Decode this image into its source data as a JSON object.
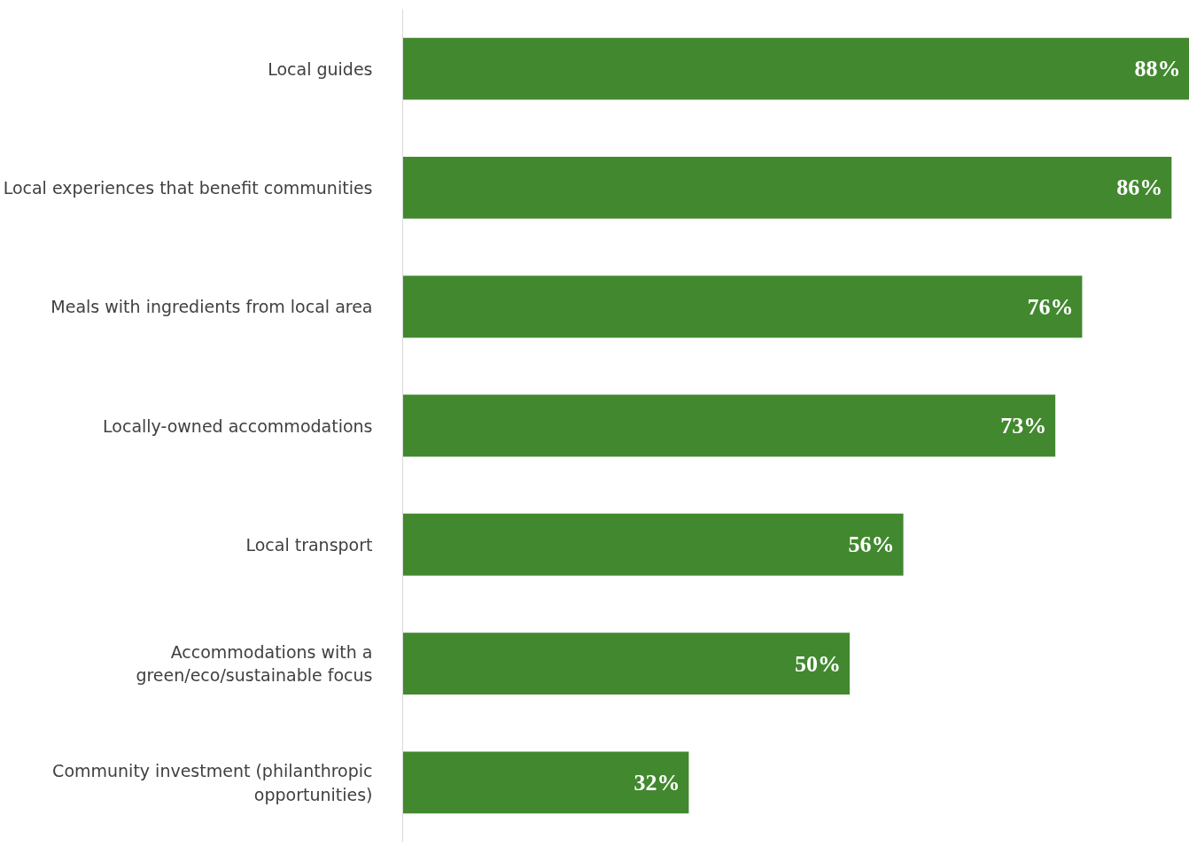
{
  "chart_data": {
    "type": "bar",
    "orientation": "horizontal",
    "categories": [
      "Local guides",
      "Local experiences that benefit communities",
      "Meals with ingredients from local area",
      "Locally-owned accommodations",
      "Local transport",
      "Accommodations with a green/eco/sustainable focus",
      "Community investment (philanthropic opportunities)"
    ],
    "values": [
      88,
      86,
      76,
      73,
      56,
      50,
      32
    ],
    "value_labels": [
      "88%",
      "86%",
      "76%",
      "73%",
      "56%",
      "50%",
      "32%"
    ],
    "color": "#42882f"
  }
}
